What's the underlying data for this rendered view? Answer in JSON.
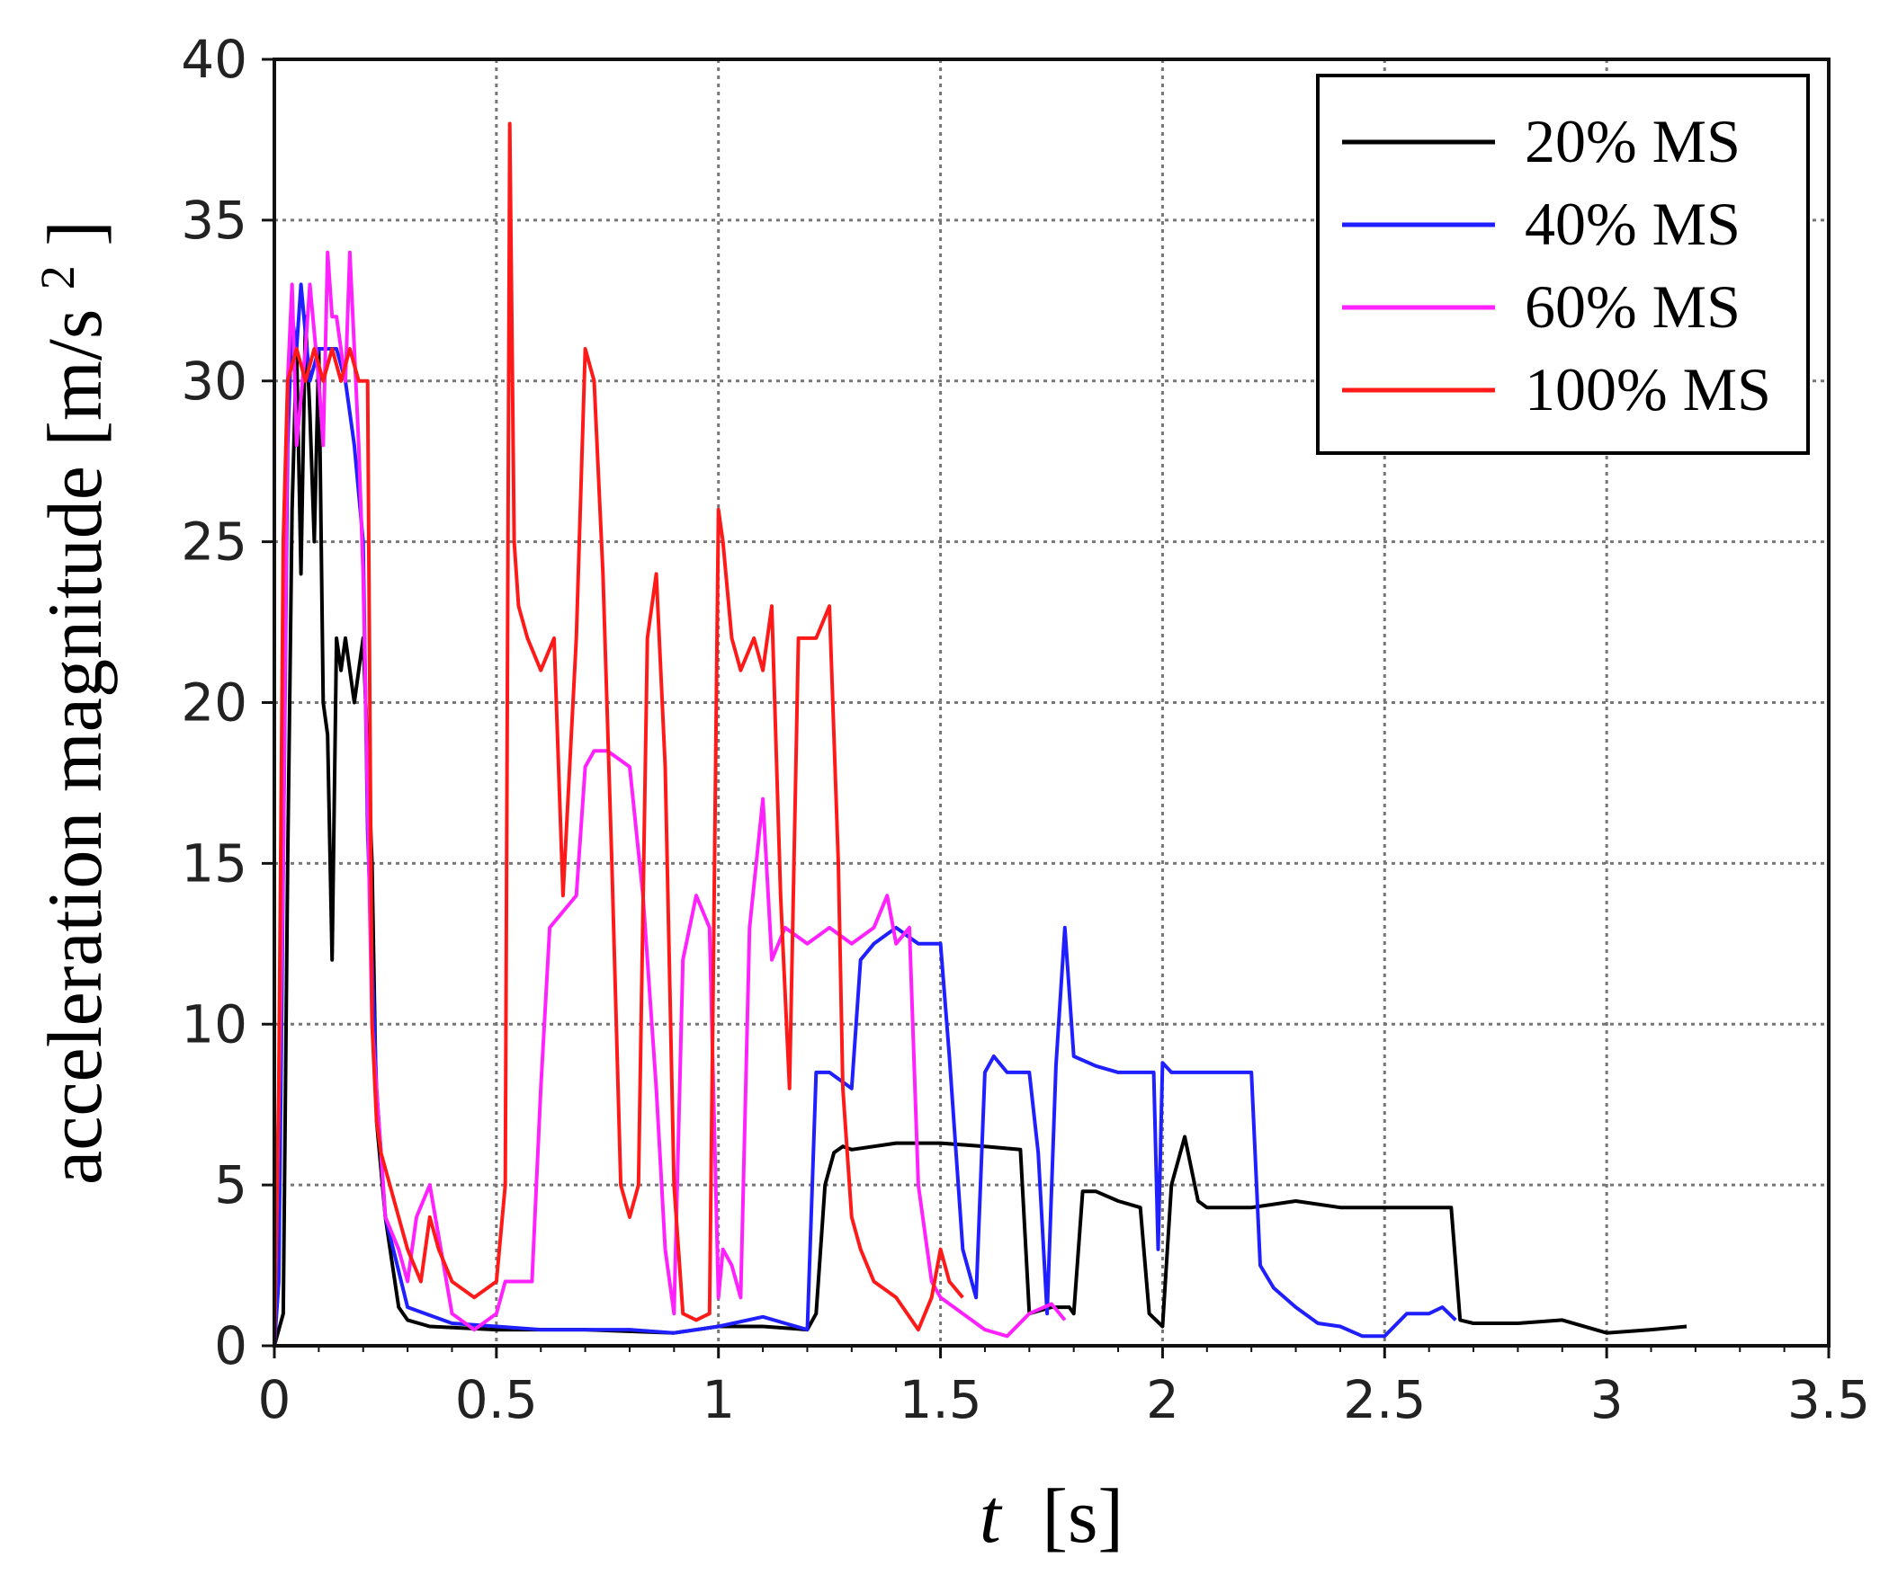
{
  "chart_data": {
    "type": "line",
    "title": "",
    "xlabel_symbol": "t",
    "xlabel_unit": "[s]",
    "ylabel_text": "acceleration magnitude [m/s",
    "ylabel_superscript": "2",
    "ylabel_close": "]",
    "xlim": [
      0,
      3.5
    ],
    "ylim": [
      0,
      40
    ],
    "xticks": [
      0,
      0.5,
      1,
      1.5,
      2,
      2.5,
      3,
      3.5
    ],
    "xtick_labels": [
      "0",
      "0.5",
      "1",
      "1.5",
      "2",
      "2.5",
      "3",
      "3.5"
    ],
    "yticks": [
      0,
      5,
      10,
      15,
      20,
      25,
      30,
      35,
      40
    ],
    "ytick_labels": [
      "0",
      "5",
      "10",
      "15",
      "20",
      "25",
      "30",
      "35",
      "40"
    ],
    "grid": true,
    "legend_position": "top-right",
    "series": [
      {
        "name": "20% MS",
        "color": "#000000",
        "x": [
          0,
          0.02,
          0.03,
          0.04,
          0.05,
          0.06,
          0.07,
          0.08,
          0.09,
          0.1,
          0.11,
          0.12,
          0.13,
          0.14,
          0.15,
          0.16,
          0.18,
          0.2,
          0.22,
          0.23,
          0.25,
          0.28,
          0.3,
          0.35,
          0.5,
          0.7,
          0.9,
          1.0,
          1.1,
          1.2,
          1.22,
          1.24,
          1.26,
          1.28,
          1.3,
          1.4,
          1.5,
          1.6,
          1.68,
          1.7,
          1.75,
          1.79,
          1.8,
          1.82,
          1.85,
          1.9,
          1.95,
          1.97,
          2.0,
          2.02,
          2.05,
          2.08,
          2.1,
          2.2,
          2.3,
          2.4,
          2.5,
          2.6,
          2.65,
          2.67,
          2.7,
          2.8,
          2.9,
          3.0,
          3.1,
          3.18
        ],
        "y": [
          0,
          1,
          15,
          26,
          31,
          24,
          32,
          29,
          25,
          31,
          20,
          19,
          12,
          22,
          21,
          22,
          20,
          22,
          15,
          7,
          4,
          1.2,
          0.8,
          0.6,
          0.5,
          0.5,
          0.4,
          0.6,
          0.6,
          0.5,
          1,
          5,
          6,
          6.2,
          6.1,
          6.3,
          6.3,
          6.2,
          6.1,
          1,
          1.2,
          1.2,
          1,
          4.8,
          4.8,
          4.5,
          4.3,
          1,
          0.6,
          5,
          6.5,
          4.5,
          4.3,
          4.3,
          4.5,
          4.3,
          4.3,
          4.3,
          4.3,
          0.8,
          0.7,
          0.7,
          0.8,
          0.4,
          0.5,
          0.6
        ]
      },
      {
        "name": "40% MS",
        "color": "#1f1fff",
        "x": [
          0,
          0.01,
          0.02,
          0.03,
          0.04,
          0.05,
          0.06,
          0.08,
          0.1,
          0.12,
          0.14,
          0.16,
          0.18,
          0.2,
          0.21,
          0.23,
          0.25,
          0.3,
          0.4,
          0.5,
          0.6,
          0.7,
          0.8,
          0.9,
          1.0,
          1.1,
          1.15,
          1.2,
          1.22,
          1.25,
          1.3,
          1.32,
          1.35,
          1.4,
          1.45,
          1.5,
          1.52,
          1.55,
          1.58,
          1.6,
          1.62,
          1.65,
          1.7,
          1.72,
          1.74,
          1.76,
          1.78,
          1.8,
          1.85,
          1.9,
          1.95,
          1.98,
          1.99,
          2.0,
          2.02,
          2.05,
          2.1,
          2.15,
          2.2,
          2.22,
          2.25,
          2.3,
          2.35,
          2.4,
          2.45,
          2.5,
          2.55,
          2.6,
          2.63,
          2.66
        ],
        "y": [
          0,
          2,
          15,
          28,
          32,
          31,
          33,
          30,
          31,
          31,
          31,
          30,
          28,
          25,
          16,
          8,
          4,
          1.2,
          0.7,
          0.6,
          0.5,
          0.5,
          0.5,
          0.4,
          0.6,
          0.9,
          0.7,
          0.5,
          8.5,
          8.5,
          8,
          12,
          12.5,
          13,
          12.5,
          12.5,
          9,
          3,
          1.5,
          8.5,
          9,
          8.5,
          8.5,
          6,
          1,
          8.7,
          13,
          9,
          8.7,
          8.5,
          8.5,
          8.5,
          3,
          8.8,
          8.5,
          8.5,
          8.5,
          8.5,
          8.5,
          2.5,
          1.8,
          1.2,
          0.7,
          0.6,
          0.3,
          0.3,
          1,
          1,
          1.2,
          0.8
        ]
      },
      {
        "name": "60% MS",
        "color": "#ff22ff",
        "x": [
          0,
          0.02,
          0.03,
          0.04,
          0.05,
          0.07,
          0.08,
          0.1,
          0.11,
          0.12,
          0.13,
          0.14,
          0.16,
          0.17,
          0.18,
          0.19,
          0.2,
          0.22,
          0.25,
          0.28,
          0.3,
          0.32,
          0.35,
          0.4,
          0.45,
          0.5,
          0.52,
          0.55,
          0.58,
          0.6,
          0.62,
          0.65,
          0.68,
          0.7,
          0.72,
          0.75,
          0.8,
          0.83,
          0.86,
          0.88,
          0.9,
          0.92,
          0.95,
          0.98,
          1.0,
          1.01,
          1.03,
          1.05,
          1.07,
          1.1,
          1.12,
          1.15,
          1.2,
          1.25,
          1.3,
          1.35,
          1.38,
          1.4,
          1.43,
          1.45,
          1.48,
          1.5,
          1.55,
          1.6,
          1.65,
          1.7,
          1.75,
          1.78
        ],
        "y": [
          0,
          15,
          30,
          33,
          28,
          31,
          33,
          30,
          28,
          34,
          32,
          32,
          30,
          34,
          31,
          28,
          24,
          10,
          4,
          3,
          2,
          4,
          5,
          1,
          0.5,
          1,
          2,
          2,
          2,
          8,
          13,
          13.5,
          14,
          18,
          18.5,
          18.5,
          18,
          14,
          8,
          3,
          1,
          12,
          14,
          13,
          1.5,
          3,
          2.5,
          1.5,
          13,
          17,
          12,
          13,
          12.5,
          13,
          12.5,
          13,
          14,
          12.5,
          13,
          5,
          2,
          1.5,
          1,
          0.5,
          0.3,
          1,
          1.3,
          0.8
        ]
      },
      {
        "name": "100% MS",
        "color": "#ff1a1a",
        "x": [
          0,
          0.01,
          0.02,
          0.03,
          0.05,
          0.07,
          0.09,
          0.11,
          0.13,
          0.15,
          0.17,
          0.19,
          0.21,
          0.22,
          0.23,
          0.24,
          0.26,
          0.28,
          0.3,
          0.33,
          0.35,
          0.37,
          0.4,
          0.45,
          0.5,
          0.52,
          0.53,
          0.54,
          0.55,
          0.57,
          0.6,
          0.63,
          0.65,
          0.68,
          0.7,
          0.72,
          0.74,
          0.76,
          0.78,
          0.8,
          0.82,
          0.84,
          0.86,
          0.88,
          0.9,
          0.92,
          0.95,
          0.98,
          1.0,
          1.01,
          1.03,
          1.05,
          1.08,
          1.1,
          1.12,
          1.14,
          1.16,
          1.18,
          1.2,
          1.22,
          1.25,
          1.27,
          1.28,
          1.3,
          1.32,
          1.35,
          1.4,
          1.45,
          1.48,
          1.5,
          1.52,
          1.55
        ],
        "y": [
          0,
          8,
          25,
          30,
          31,
          30,
          31,
          30,
          31,
          30,
          31,
          30,
          30,
          10,
          7,
          6,
          5,
          4,
          3,
          2,
          4,
          3,
          2,
          1.5,
          2,
          5,
          38,
          25,
          23,
          22,
          21,
          22,
          14,
          22,
          31,
          30,
          24,
          15,
          5,
          4,
          5,
          22,
          24,
          18,
          5,
          1,
          0.8,
          1,
          26,
          25,
          22,
          21,
          22,
          21,
          23,
          14,
          8,
          22,
          22,
          22,
          23,
          15,
          8,
          4,
          3,
          2,
          1.5,
          0.5,
          1.5,
          3,
          2,
          1.5
        ]
      }
    ]
  }
}
